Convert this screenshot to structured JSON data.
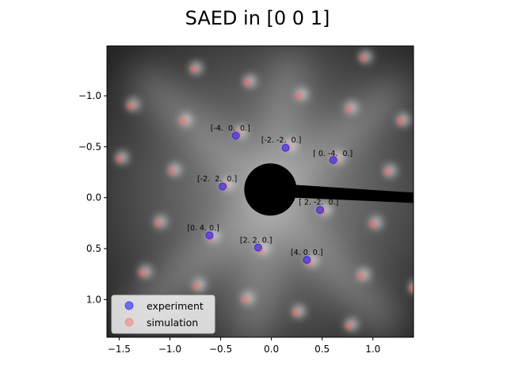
{
  "chart_data": {
    "type": "scatter",
    "title": "SAED in [0 0 1]",
    "xlabel": "",
    "ylabel": "",
    "xlim": [
      -1.62,
      1.4
    ],
    "ylim": [
      1.37,
      -1.49
    ],
    "y_inverted": true,
    "xticks": [
      -1.5,
      -1.0,
      -0.5,
      0.0,
      0.5,
      1.0
    ],
    "xtick_labels": [
      "−1.5",
      "−1.0",
      "−0.5",
      "0.0",
      "0.5",
      "1.0"
    ],
    "yticks": [
      -1.0,
      -0.5,
      0.0,
      0.5,
      1.0
    ],
    "ytick_labels": [
      "−1.0",
      "−0.5",
      "0.0",
      "0.5",
      "1.0"
    ],
    "grid": false,
    "legend_position": "lower-left",
    "beam_stop_center": [
      -0.01,
      -0.08
    ],
    "series": [
      {
        "name": "experiment",
        "color": "#0000ff",
        "alpha": 0.5,
        "points": [
          {
            "x": -0.35,
            "y": -0.61
          },
          {
            "x": 0.14,
            "y": -0.49
          },
          {
            "x": 0.61,
            "y": -0.37
          },
          {
            "x": -0.48,
            "y": -0.11
          },
          {
            "x": 0.48,
            "y": 0.12
          },
          {
            "x": -0.61,
            "y": 0.37
          },
          {
            "x": -0.13,
            "y": 0.49
          },
          {
            "x": 0.35,
            "y": 0.61
          }
        ]
      },
      {
        "name": "simulation",
        "color": "#ff6666",
        "alpha": 0.35,
        "points": [
          {
            "x": -0.33,
            "y": -0.63
          },
          {
            "x": 0.16,
            "y": -0.5
          },
          {
            "x": 0.63,
            "y": -0.38
          },
          {
            "x": -0.46,
            "y": -0.12
          },
          {
            "x": 0.5,
            "y": 0.13
          },
          {
            "x": -0.6,
            "y": 0.39
          },
          {
            "x": -0.11,
            "y": 0.51
          },
          {
            "x": 0.37,
            "y": 0.63
          },
          {
            "x": 0.9,
            "y": -1.37
          },
          {
            "x": -0.77,
            "y": -1.26
          },
          {
            "x": -0.24,
            "y": -1.13
          },
          {
            "x": 0.27,
            "y": -1.0
          },
          {
            "x": -1.39,
            "y": -0.9
          },
          {
            "x": 0.76,
            "y": -0.87
          },
          {
            "x": -0.87,
            "y": -0.75
          },
          {
            "x": 1.27,
            "y": -0.75
          },
          {
            "x": -1.5,
            "y": -0.38
          },
          {
            "x": -0.98,
            "y": -0.26
          },
          {
            "x": 1.14,
            "y": -0.25
          },
          {
            "x": -1.12,
            "y": 0.25
          },
          {
            "x": 1.0,
            "y": 0.26
          },
          {
            "x": -1.27,
            "y": 0.74
          },
          {
            "x": 0.88,
            "y": 0.77
          },
          {
            "x": -0.74,
            "y": 0.87
          },
          {
            "x": 1.39,
            "y": 0.89
          },
          {
            "x": -0.26,
            "y": 1.0
          },
          {
            "x": 0.24,
            "y": 1.13
          },
          {
            "x": 0.76,
            "y": 1.26
          }
        ]
      }
    ],
    "annotations": [
      {
        "text": "[-4.  0.  0.]",
        "x": -0.6,
        "y": -0.66
      },
      {
        "text": "[-2. -2.  0.]",
        "x": -0.1,
        "y": -0.54
      },
      {
        "text": "[ 0. -4.  0.]",
        "x": 0.41,
        "y": -0.41
      },
      {
        "text": "[-2.  2.  0.]",
        "x": -0.73,
        "y": -0.16
      },
      {
        "text": "[ 2. -2.  0.]",
        "x": 0.27,
        "y": 0.07
      },
      {
        "text": "[0. 4. 0.]",
        "x": -0.83,
        "y": 0.32
      },
      {
        "text": "[2. 2. 0.]",
        "x": -0.31,
        "y": 0.44
      },
      {
        "text": "[4. 0. 0.]",
        "x": 0.19,
        "y": 0.56
      }
    ]
  }
}
